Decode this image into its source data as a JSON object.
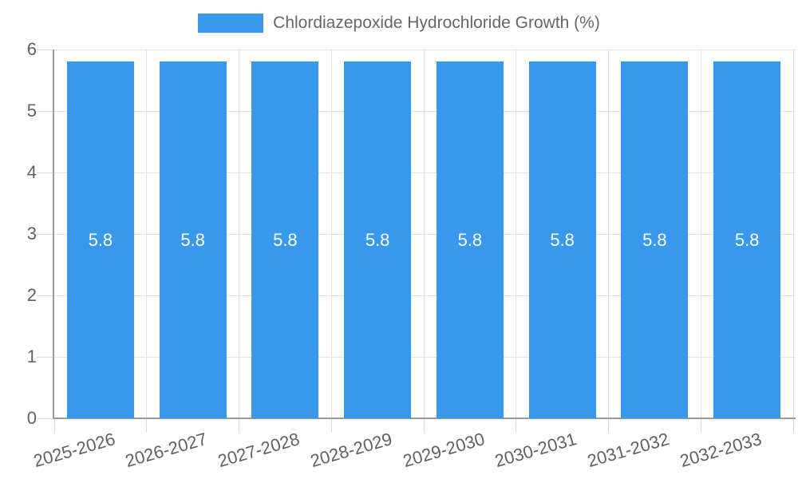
{
  "chart_data": {
    "type": "bar",
    "title": "Chlordiazepoxide Hydrochloride Growth (%)",
    "categories": [
      "2025-2026",
      "2026-2027",
      "2027-2028",
      "2028-2029",
      "2029-2030",
      "2030-2031",
      "2031-2032",
      "2032-2033"
    ],
    "series": [
      {
        "name": "Chlordiazepoxide Hydrochloride Growth (%)",
        "values": [
          5.8,
          5.8,
          5.8,
          5.8,
          5.8,
          5.8,
          5.8,
          5.8
        ]
      }
    ],
    "data_labels": [
      "5.8",
      "5.8",
      "5.8",
      "5.8",
      "5.8",
      "5.8",
      "5.8",
      "5.8"
    ],
    "ylim": [
      0,
      6
    ],
    "yticks": [
      0,
      1,
      2,
      3,
      4,
      5,
      6
    ],
    "ytick_labels": [
      "0",
      "1",
      "2",
      "3",
      "4",
      "5",
      "6"
    ],
    "grid": true,
    "legend_position": "top-center",
    "colors": {
      "bar": "#3899ec",
      "bar_value_label": "#ffffff",
      "axis_line": "#9a9a9a",
      "grid_line": "#e3e3e3",
      "tick_mark": "#d9d9d9",
      "tick_label": "#616161",
      "legend_text": "#666666",
      "background": "#ffffff"
    }
  }
}
